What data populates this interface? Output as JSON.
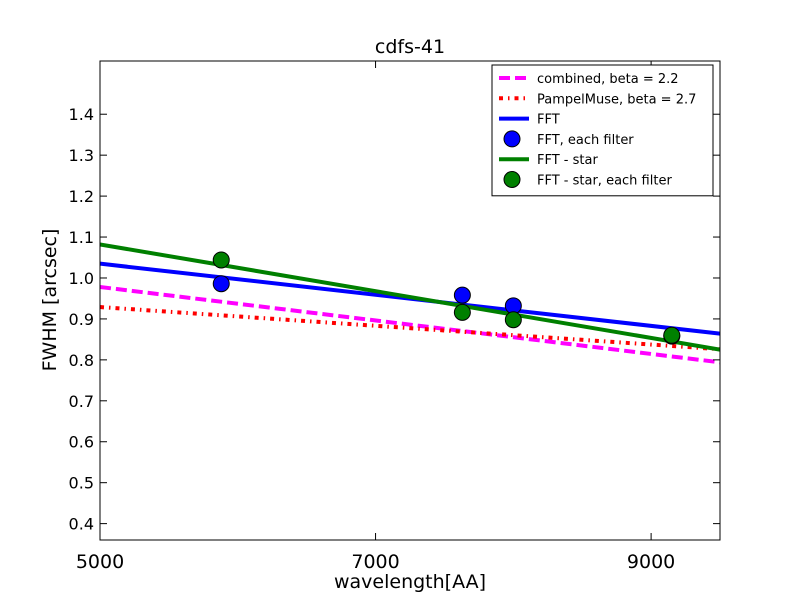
{
  "chart_data": {
    "type": "line",
    "title": "cdfs-41",
    "xlabel": "wavelength[AA]",
    "ylabel": "FWHM [arcsec]",
    "xlim": [
      5000,
      9500
    ],
    "ylim": [
      0.36,
      1.53
    ],
    "xticks": [
      5000,
      7000,
      9000
    ],
    "yticks": [
      0.4,
      0.5,
      0.6,
      0.7,
      0.8,
      0.9,
      1.0,
      1.1,
      1.2,
      1.3,
      1.4
    ],
    "grid": false,
    "legend_position": "top-right",
    "series": [
      {
        "name": "combined, beta = 2.2",
        "kind": "line",
        "style": "dashed",
        "color": "#ff00ff",
        "x": [
          5000,
          9500
        ],
        "y": [
          0.978,
          0.794
        ]
      },
      {
        "name": "PampelMuse, beta = 2.7",
        "kind": "line",
        "style": "dashdot",
        "color": "#ff0000",
        "x": [
          5000,
          9500
        ],
        "y": [
          0.929,
          0.826
        ]
      },
      {
        "name": "FFT",
        "kind": "line",
        "style": "solid",
        "color": "#0000ff",
        "x": [
          5000,
          9500
        ],
        "y": [
          1.035,
          0.864
        ]
      },
      {
        "name": "FFT, each filter",
        "kind": "scatter",
        "color": "#0000ff",
        "x": [
          5880,
          7630,
          8000,
          9150
        ],
        "y": [
          0.986,
          0.958,
          0.932,
          0.858
        ]
      },
      {
        "name": "FFT - star",
        "kind": "line",
        "style": "solid",
        "color": "#008000",
        "x": [
          5000,
          9500
        ],
        "y": [
          1.082,
          0.825
        ]
      },
      {
        "name": "FFT - star, each filter",
        "kind": "scatter",
        "color": "#008000",
        "x": [
          5880,
          7630,
          8000,
          9150
        ],
        "y": [
          1.044,
          0.916,
          0.898,
          0.86
        ]
      }
    ]
  }
}
